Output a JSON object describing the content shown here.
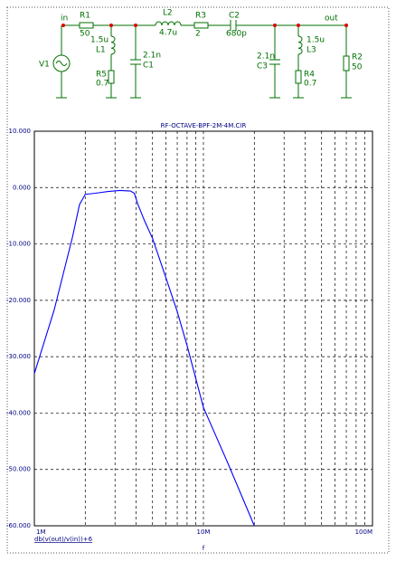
{
  "schematic": {
    "labels": [
      "in",
      "R1",
      "50",
      "L2",
      "4.7u",
      "R3",
      "2",
      "C2",
      "680p",
      "out",
      "1.5u",
      "L1",
      "2.1n",
      "C1",
      "R5",
      "0.7",
      "V1",
      "2.1n",
      "C3",
      "1.5u",
      "L3",
      "R4",
      "0.7",
      "R2",
      "50"
    ]
  },
  "chart_data": {
    "type": "line",
    "title": "RF-OCTAVE-BPF-2M-4M.CIR",
    "xlabel": "f",
    "xscale": "log",
    "grid": true,
    "x": [
      1000000,
      1310000,
      1680000,
      1850000,
      2000000,
      2300000,
      2700000,
      3200000,
      3700000,
      3900000,
      4100000,
      4500000,
      5000000,
      6000000,
      7000000,
      8000000,
      10000000,
      14000000,
      20000000
    ],
    "series": [
      {
        "name": "db(v(out)/v(in))+6",
        "color": "#0000ff",
        "values": [
          -33,
          -21.7,
          -8.8,
          -3,
          -1.2,
          -1.0,
          -0.7,
          -0.5,
          -0.6,
          -1.0,
          -3,
          -6,
          -9,
          -16,
          -22,
          -28,
          -39,
          -49,
          -60
        ]
      }
    ],
    "xlim": [
      1000000,
      100000000
    ],
    "xticks": [
      {
        "value": 1000000,
        "label": "1M"
      },
      {
        "value": 10000000,
        "label": "10M"
      },
      {
        "value": 100000000,
        "label": "100M"
      }
    ],
    "xminorticks": [
      2000000,
      3000000,
      4000000,
      5000000,
      6000000,
      7000000,
      8000000,
      9000000,
      20000000,
      30000000,
      40000000,
      50000000,
      60000000,
      70000000,
      80000000,
      90000000
    ],
    "ylim": [
      -60,
      10
    ],
    "yticks": [
      {
        "value": 10,
        "label": "10.000"
      },
      {
        "value": 0,
        "label": "0.000"
      },
      {
        "value": -10,
        "label": "-10.000"
      },
      {
        "value": -20,
        "label": "-20.000"
      },
      {
        "value": -30,
        "label": "-30.000"
      },
      {
        "value": -40,
        "label": "-40.000"
      },
      {
        "value": -50,
        "label": "-50.000"
      },
      {
        "value": -60,
        "label": "-60.000"
      }
    ]
  }
}
